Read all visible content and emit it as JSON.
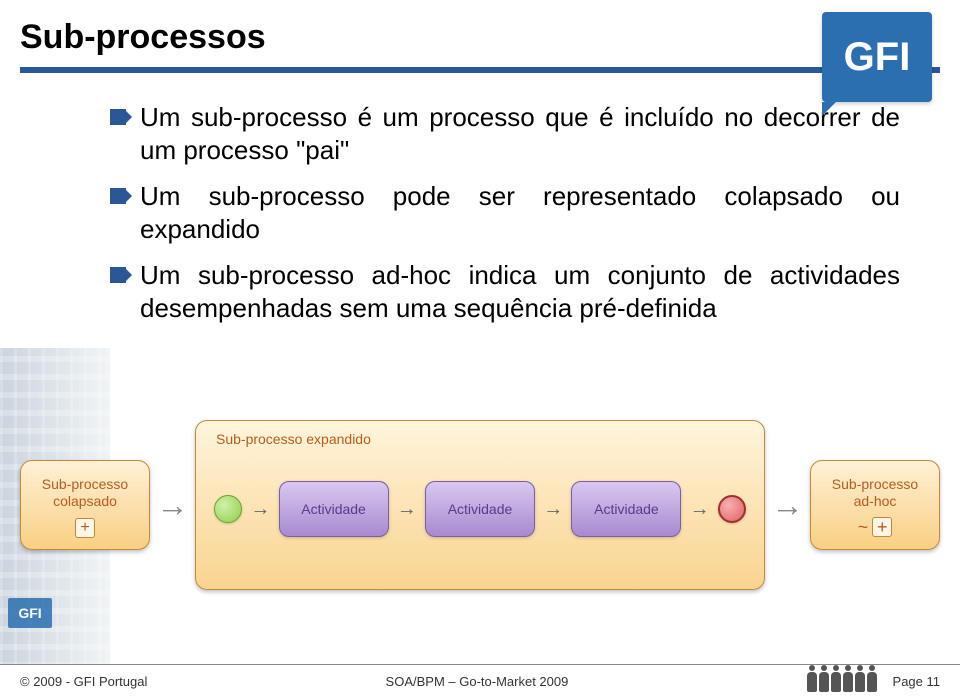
{
  "header": {
    "title": "Sub-processos",
    "logo_text": "GFI",
    "rule_color": "#2b5797"
  },
  "bullets": [
    {
      "text": "Um sub-processo é um processo que é incluído no decorrer de um processo \"pai\""
    },
    {
      "text": "Um sub-processo pode ser representado colapsado ou expandido"
    },
    {
      "text": "Um sub-processo ad-hoc indica um conjunto de actividades desempenhadas sem uma sequência pré-definida"
    }
  ],
  "diagram": {
    "collapsed": {
      "line1": "Sub-processo",
      "line2": "colapsado",
      "marker": "+"
    },
    "expanded": {
      "title": "Sub-processo expandido",
      "activities": [
        "Actividade",
        "Actividade",
        "Actividade"
      ]
    },
    "adhoc": {
      "line1": "Sub-processo",
      "line2": "ad-hoc",
      "marker": "~ +"
    },
    "colors": {
      "box_border": "#c08a3a",
      "box_fill_top": "#fff1d6",
      "box_fill_bottom": "#f9cf83",
      "label_color": "#b85c1e",
      "activity_fill_top": "#d8c8f0",
      "activity_fill_bottom": "#a88ad0",
      "activity_text": "#5a3a8a",
      "start_circle": "#8ecf4a",
      "end_circle": "#e06060"
    }
  },
  "footer": {
    "copyright": "© 2009 - GFI Portugal",
    "center": "SOA/BPM – Go-to-Market 2009",
    "page": "Page 11",
    "building_sign": "GFI"
  }
}
